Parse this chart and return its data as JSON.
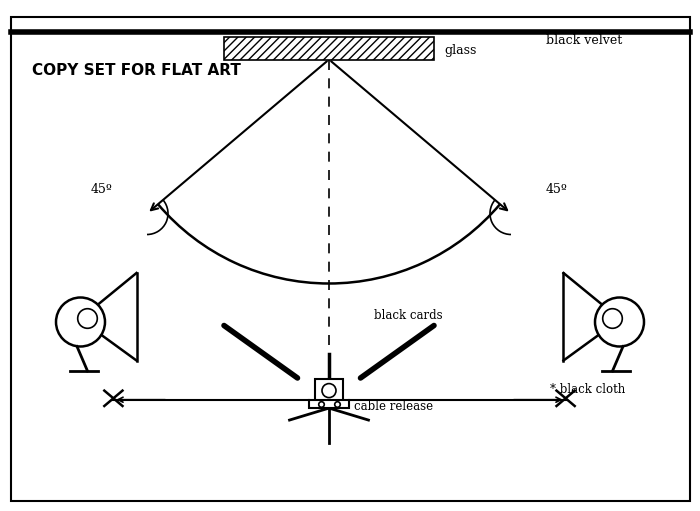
{
  "title": "COPY SET FOR FLAT ART",
  "bg_color": "#ffffff",
  "border_color": "#000000",
  "text_color": "#000000",
  "label_glass": "glass",
  "label_black_velvet": "black velvet",
  "label_45_left": "45º",
  "label_45_right": "45º",
  "label_black_cards": "black cards",
  "label_cable_release": "cable release",
  "label_black_cloth": "* black cloth",
  "xlim": [
    0,
    10
  ],
  "ylim": [
    0,
    7.3
  ],
  "apex_x": 4.7,
  "apex_y": 6.45,
  "cam_y": 1.55,
  "left_lamp_x": 1.15,
  "left_lamp_y": 2.7,
  "right_lamp_x": 8.85,
  "right_lamp_y": 2.7
}
